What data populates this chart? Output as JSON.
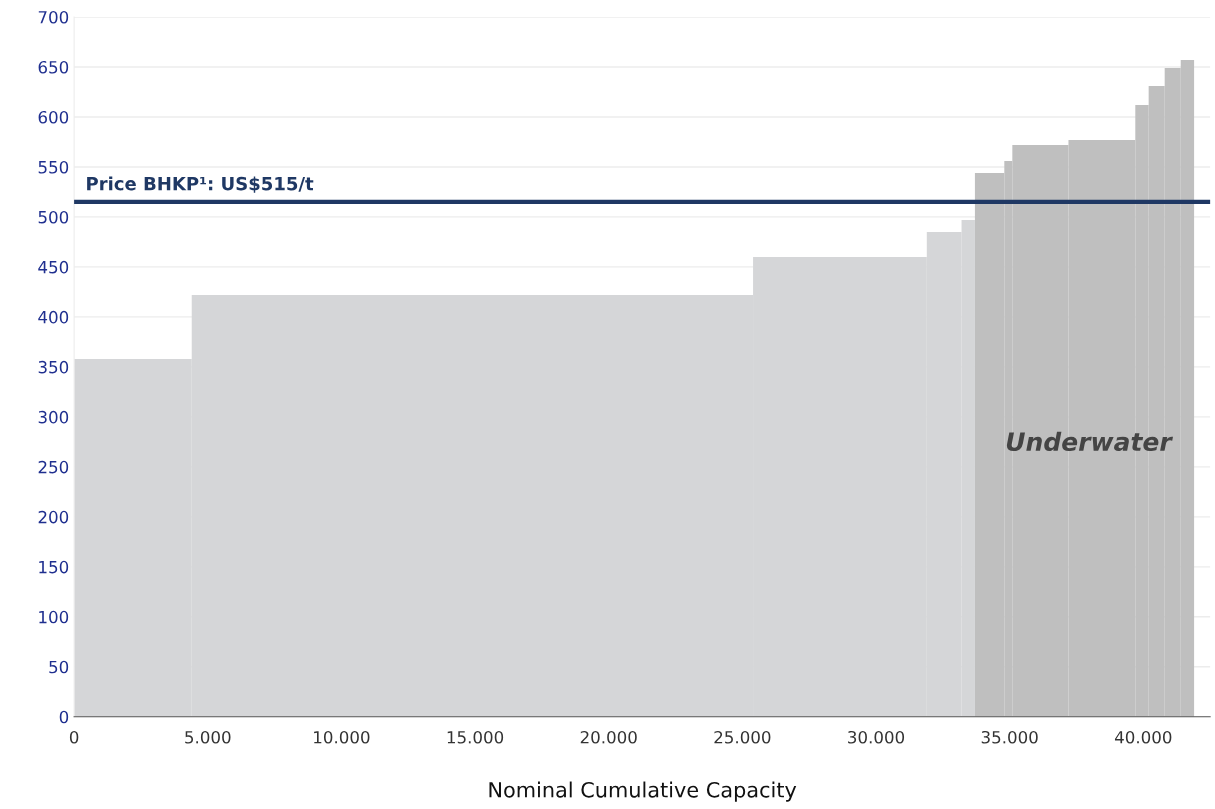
{
  "chart_data": {
    "type": "histogram",
    "xlabel": "Nominal Cumulative Capacity",
    "bins": [
      0,
      4400,
      25400,
      31900,
      33200,
      33700,
      34800,
      35100,
      37200,
      39700,
      40200,
      40800,
      41400,
      41900
    ],
    "values": [
      358,
      422,
      460,
      485,
      497,
      544,
      556,
      572,
      577,
      612,
      631,
      649,
      657
    ],
    "colors": [
      "#d5d6d8",
      "#d5d6d8",
      "#d5d6d8",
      "#d5d6d8",
      "#d5d6d8",
      "#bfbfbf",
      "#bfbfbf",
      "#bfbfbf",
      "#bfbfbf",
      "#bfbfbf",
      "#bfbfbf",
      "#bfbfbf",
      "#bfbfbf"
    ],
    "xlim": [
      0,
      42500
    ],
    "ylim": [
      0,
      700
    ],
    "xticks": [
      0,
      {
        "value": 5000,
        "label": "5.000"
      },
      {
        "value": 10000,
        "label": "10.000"
      },
      {
        "value": 15000,
        "label": "15.000"
      },
      {
        "value": 20000,
        "label": "20.000"
      },
      {
        "value": 25000,
        "label": "25.000"
      },
      {
        "value": 30000,
        "label": "30.000"
      },
      {
        "value": 35000,
        "label": "35.000"
      },
      {
        "value": 40000,
        "label": "40.000"
      }
    ],
    "yticks": [
      0,
      50,
      100,
      150,
      200,
      250,
      300,
      350,
      400,
      450,
      500,
      550,
      600,
      650,
      700
    ],
    "ref_lines": [
      {
        "axis": "y",
        "value": 515,
        "label": "Price BHKP¹: US$515/t",
        "color": "#1f3864"
      }
    ],
    "annotations": [
      "Underwater"
    ],
    "grid": "y"
  }
}
